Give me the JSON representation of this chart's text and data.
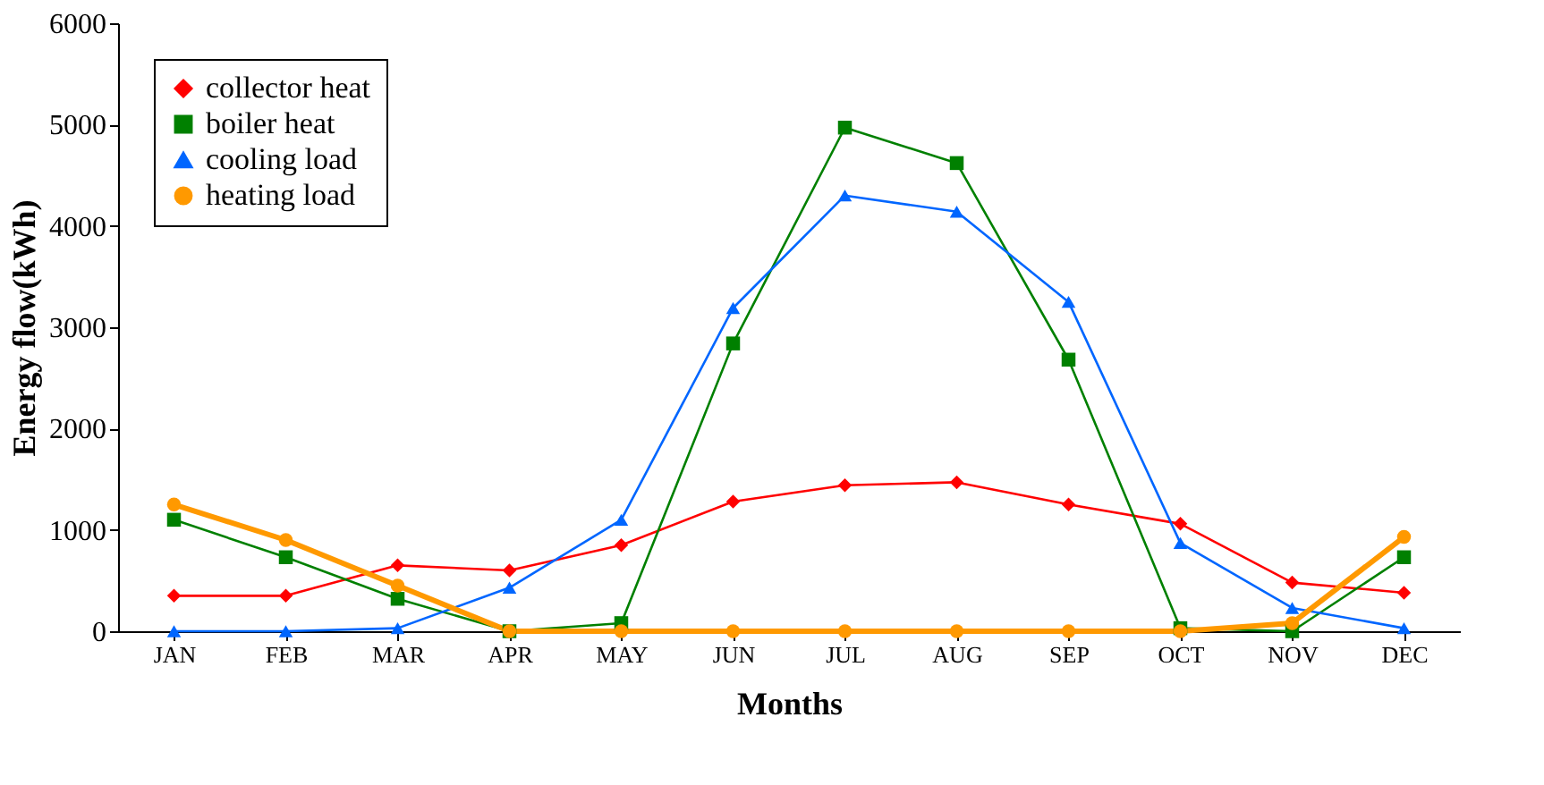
{
  "chart_data": {
    "type": "line",
    "xlabel": "Months",
    "ylabel": "Energy flow(kWh)",
    "categories": [
      "JAN",
      "FEB",
      "MAR",
      "APR",
      "MAY",
      "JUN",
      "JUL",
      "AUG",
      "SEP",
      "OCT",
      "NOV",
      "DEC"
    ],
    "series": [
      {
        "name": "collector heat",
        "color": "#ff0000",
        "marker": "diamond",
        "values": [
          350,
          350,
          650,
          600,
          850,
          1280,
          1440,
          1470,
          1250,
          1060,
          480,
          380
        ]
      },
      {
        "name": "boiler heat",
        "color": "#008000",
        "marker": "square",
        "values": [
          1100,
          730,
          320,
          0,
          80,
          2840,
          4970,
          4620,
          2680,
          30,
          0,
          730
        ]
      },
      {
        "name": "cooling load",
        "color": "#0066ff",
        "marker": "triangle",
        "values": [
          0,
          0,
          30,
          430,
          1100,
          3190,
          4300,
          4140,
          3250,
          870,
          230,
          30
        ]
      },
      {
        "name": "heating load",
        "color": "#ff9900",
        "marker": "circle",
        "values": [
          1250,
          900,
          450,
          0,
          0,
          0,
          0,
          0,
          0,
          0,
          80,
          930
        ]
      }
    ],
    "ylim": [
      0,
      6000
    ],
    "yticks": [
      0,
      1000,
      2000,
      3000,
      4000,
      5000,
      6000
    ],
    "grid": false,
    "legend": "top left",
    "line_style": "solid"
  }
}
